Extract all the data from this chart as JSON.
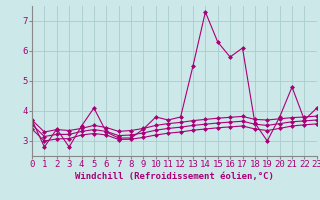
{
  "title": "",
  "xlabel": "Windchill (Refroidissement éolien,°C)",
  "ylabel": "",
  "background_color": "#cce8e8",
  "grid_color": "#aacccc",
  "line_color": "#aa0077",
  "x": [
    0,
    1,
    2,
    3,
    4,
    5,
    6,
    7,
    8,
    9,
    10,
    11,
    12,
    13,
    14,
    15,
    16,
    17,
    18,
    19,
    20,
    21,
    22,
    23
  ],
  "line1": [
    3.7,
    2.8,
    3.4,
    2.8,
    3.5,
    4.1,
    3.3,
    3.1,
    3.1,
    3.4,
    3.8,
    3.7,
    3.8,
    5.5,
    7.3,
    6.3,
    5.8,
    6.1,
    3.6,
    3.0,
    3.8,
    4.8,
    3.7,
    4.1
  ],
  "line2": [
    3.7,
    3.3,
    3.38,
    3.35,
    3.42,
    3.52,
    3.45,
    3.32,
    3.35,
    3.42,
    3.52,
    3.58,
    3.62,
    3.68,
    3.72,
    3.76,
    3.79,
    3.82,
    3.72,
    3.7,
    3.74,
    3.78,
    3.8,
    3.83
  ],
  "line3": [
    3.55,
    3.15,
    3.22,
    3.22,
    3.32,
    3.38,
    3.32,
    3.18,
    3.2,
    3.27,
    3.36,
    3.42,
    3.46,
    3.52,
    3.56,
    3.6,
    3.63,
    3.66,
    3.56,
    3.52,
    3.58,
    3.64,
    3.67,
    3.7
  ],
  "line4": [
    3.4,
    3.0,
    3.07,
    3.08,
    3.2,
    3.25,
    3.2,
    3.05,
    3.06,
    3.12,
    3.2,
    3.26,
    3.3,
    3.36,
    3.4,
    3.44,
    3.47,
    3.5,
    3.4,
    3.35,
    3.42,
    3.5,
    3.54,
    3.57
  ],
  "ylim": [
    2.5,
    7.5
  ],
  "xlim": [
    0,
    23
  ],
  "yticks": [
    3,
    4,
    5,
    6,
    7
  ],
  "xticks": [
    0,
    1,
    2,
    3,
    4,
    5,
    6,
    7,
    8,
    9,
    10,
    11,
    12,
    13,
    14,
    15,
    16,
    17,
    18,
    19,
    20,
    21,
    22,
    23
  ],
  "xlabel_fontsize": 6.5,
  "tick_fontsize": 6.5,
  "marker": "D",
  "markersize": 2.0,
  "linewidth": 0.8
}
